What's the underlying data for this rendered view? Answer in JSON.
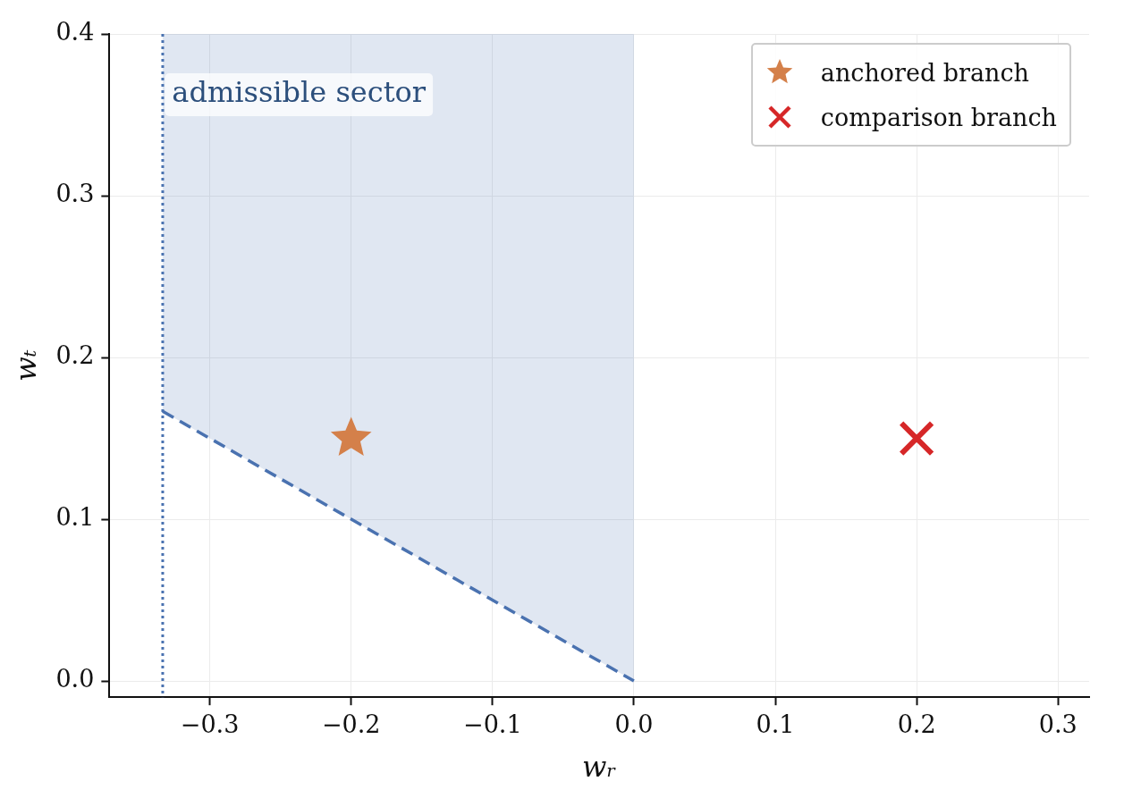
{
  "chart_data": {
    "type": "scatter",
    "xlabel": "wᵣ",
    "ylabel": "wₜ",
    "xlim": [
      -0.371,
      0.322
    ],
    "ylim": [
      -0.01,
      0.4
    ],
    "xticks": [
      {
        "value": -0.3,
        "label": "−0.3"
      },
      {
        "value": -0.2,
        "label": "−0.2"
      },
      {
        "value": -0.1,
        "label": "−0.1"
      },
      {
        "value": 0,
        "label": "0.0"
      },
      0.1,
      0.2,
      0.3
    ],
    "yticks": [
      {
        "value": 0,
        "label": "0.0"
      },
      0.1,
      0.2,
      0.3,
      0.4
    ],
    "grid": true,
    "legend": "top right",
    "series": [
      {
        "type": "line",
        "color": "#4a72b0",
        "line_style": "dashed",
        "marker": "none",
        "x": [
          -0.3333,
          0
        ],
        "values": [
          0.1667,
          0
        ],
        "lower": [
          0.1667,
          0
        ],
        "upper": [
          0.4,
          0.4
        ]
      },
      {
        "name": "anchored branch",
        "color": "#d4804a",
        "marker": "star",
        "x": [
          -0.2
        ],
        "values": [
          0.15
        ]
      },
      {
        "name": "comparison branch",
        "color": "#d62728",
        "marker": "cross",
        "x": [
          0.2
        ],
        "values": [
          0.15
        ]
      }
    ],
    "ref_lines": [
      {
        "axis": "x",
        "value": -0.3333,
        "color": "#4a72b0",
        "line_style": "dotted"
      }
    ],
    "annotations": [
      "admissible sector"
    ]
  }
}
